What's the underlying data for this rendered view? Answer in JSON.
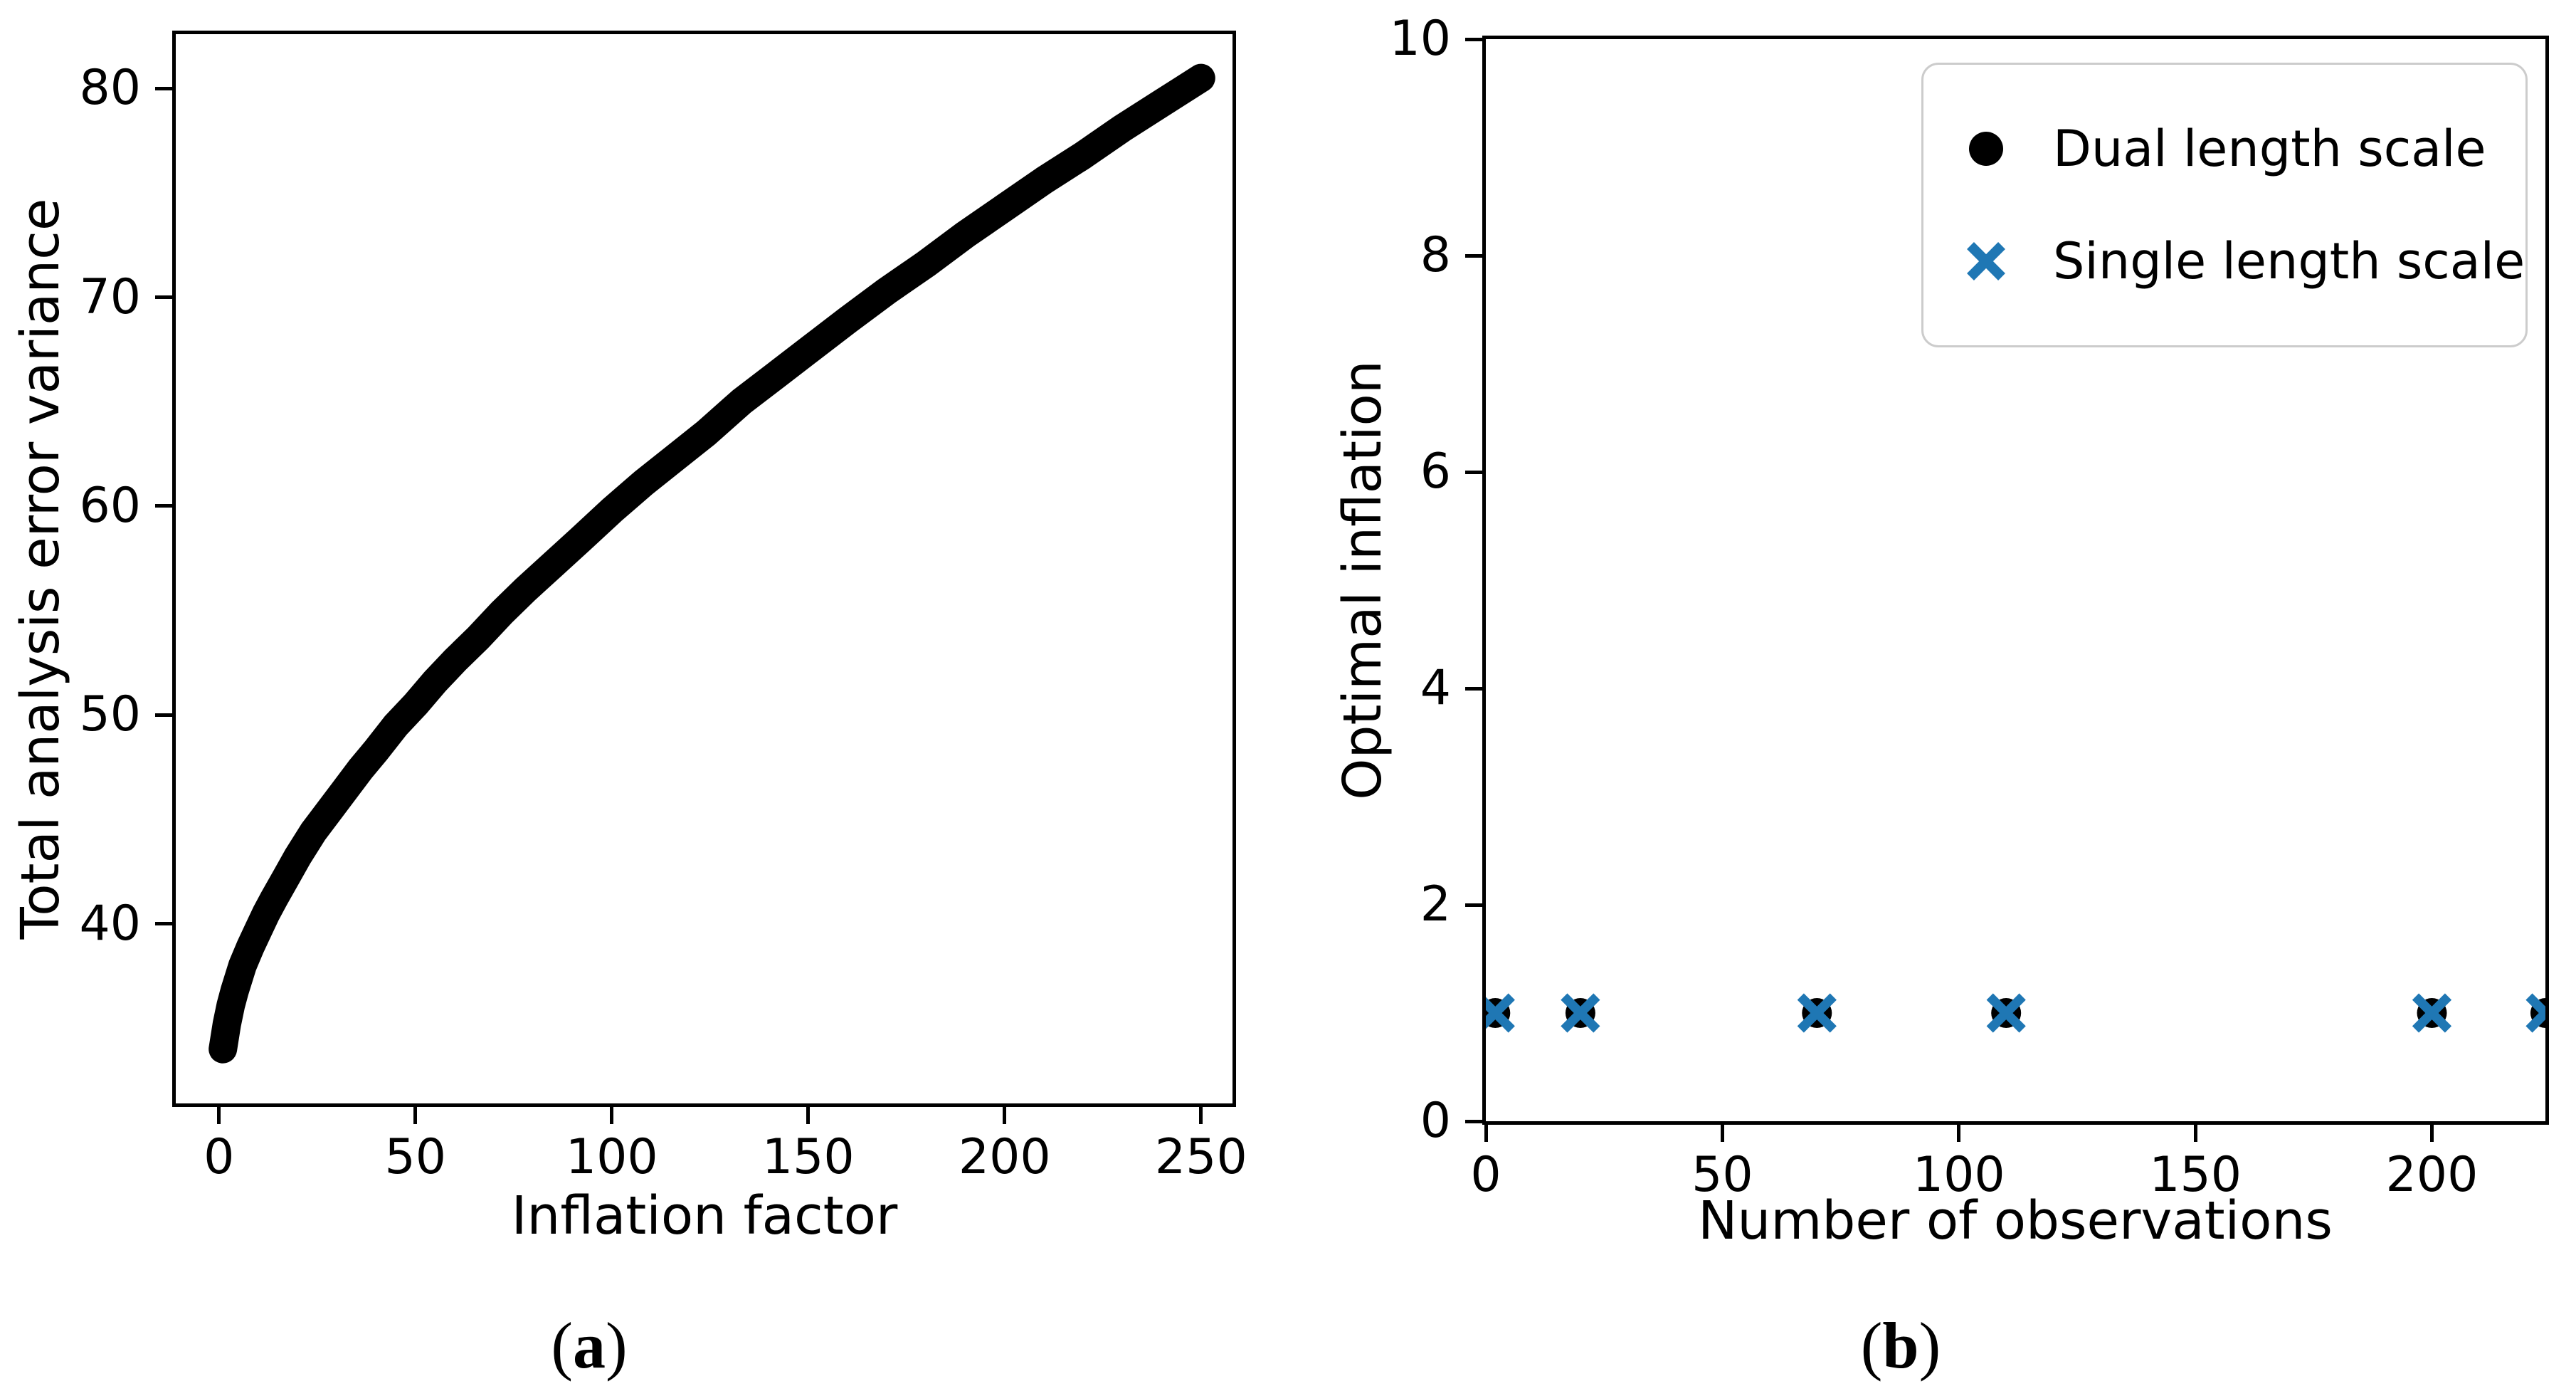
{
  "figure": {
    "background": "#ffffff",
    "spine_color": "#000000",
    "legend_border_color": "#cccccc"
  },
  "chart_data": [
    {
      "id": "a",
      "type": "scatter",
      "caption_open": "(",
      "caption_letter": "a",
      "caption_close": ")",
      "xlabel": "Inflation factor",
      "ylabel": "Total analysis error variance",
      "xlim": [
        -11,
        258
      ],
      "ylim": [
        31.4,
        82.6
      ],
      "xticks": [
        0,
        50,
        100,
        150,
        200,
        250
      ],
      "yticks": [
        40,
        50,
        60,
        70,
        80
      ],
      "grid": false,
      "legend": null,
      "series": [
        {
          "name": "Total analysis error variance",
          "marker": "circle",
          "color": "#000000",
          "render": "band",
          "points": [
            [
              1,
              34.0
            ],
            [
              2,
              35.2
            ],
            [
              3,
              36.1
            ],
            [
              4,
              36.8
            ],
            [
              5,
              37.4
            ],
            [
              6,
              38.0
            ],
            [
              8,
              38.9
            ],
            [
              10,
              39.7
            ],
            [
              12,
              40.5
            ],
            [
              14,
              41.2
            ],
            [
              17,
              42.2
            ],
            [
              20,
              43.2
            ],
            [
              24,
              44.4
            ],
            [
              28,
              45.4
            ],
            [
              32,
              46.4
            ],
            [
              36,
              47.4
            ],
            [
              40,
              48.3
            ],
            [
              45,
              49.5
            ],
            [
              50,
              50.5
            ],
            [
              55,
              51.6
            ],
            [
              60,
              52.6
            ],
            [
              66,
              53.7
            ],
            [
              72,
              54.9
            ],
            [
              78,
              56.0
            ],
            [
              85,
              57.2
            ],
            [
              92,
              58.4
            ],
            [
              100,
              59.8
            ],
            [
              108,
              61.1
            ],
            [
              116,
              62.3
            ],
            [
              124,
              63.5
            ],
            [
              133,
              65.0
            ],
            [
              142,
              66.3
            ],
            [
              151,
              67.6
            ],
            [
              160,
              68.9
            ],
            [
              170,
              70.3
            ],
            [
              180,
              71.6
            ],
            [
              190,
              73.0
            ],
            [
              200,
              74.3
            ],
            [
              210,
              75.6
            ],
            [
              220,
              76.8
            ],
            [
              230,
              78.1
            ],
            [
              240,
              79.3
            ],
            [
              250,
              80.5
            ]
          ]
        }
      ]
    },
    {
      "id": "b",
      "type": "scatter",
      "caption_open": "(",
      "caption_letter": "b",
      "caption_close": ")",
      "xlabel": "Number of observations",
      "ylabel": "Optimal inflation",
      "xlim": [
        0,
        224
      ],
      "ylim": [
        0,
        10
      ],
      "xticks": [
        0,
        50,
        100,
        150,
        200
      ],
      "yticks": [
        0,
        2,
        4,
        6,
        8,
        10
      ],
      "grid": false,
      "legend": {
        "position": "upper right",
        "entries": [
          {
            "label": "Dual length scale",
            "marker": "circle",
            "color": "#000000"
          },
          {
            "label": "Single length scale",
            "marker": "x",
            "color": "#1f77b4"
          }
        ]
      },
      "series": [
        {
          "name": "Dual length scale",
          "marker": "circle",
          "color": "#000000",
          "render": "markers",
          "points": [
            [
              2,
              1
            ],
            [
              20,
              1
            ],
            [
              70,
              1
            ],
            [
              110,
              1
            ],
            [
              200,
              1
            ],
            [
              224,
              1
            ]
          ]
        },
        {
          "name": "Single length scale",
          "marker": "x",
          "color": "#1f77b4",
          "render": "markers",
          "points": [
            [
              2,
              1
            ],
            [
              20,
              1
            ],
            [
              70,
              1
            ],
            [
              110,
              1
            ],
            [
              200,
              1
            ],
            [
              224,
              1
            ]
          ]
        }
      ]
    }
  ]
}
